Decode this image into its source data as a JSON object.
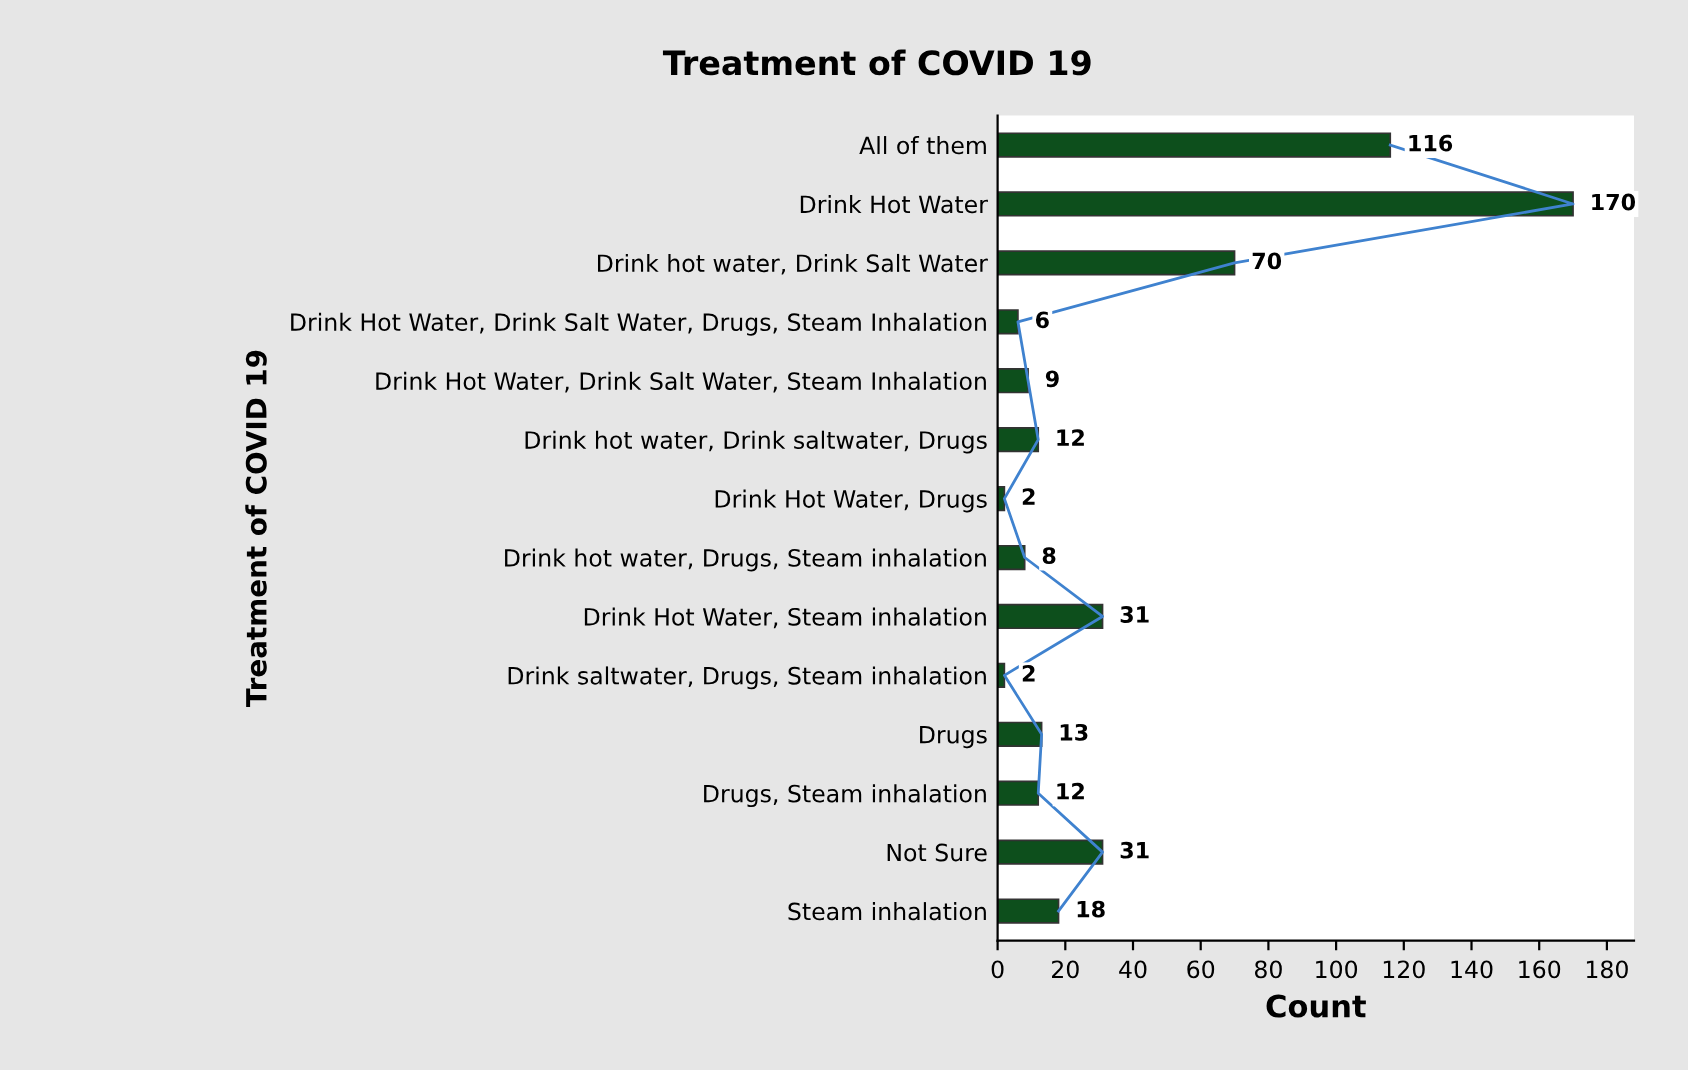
{
  "chart_data": {
    "type": "bar",
    "orientation": "horizontal",
    "title": "Treatment of COVID 19",
    "xlabel": "Count",
    "ylabel": "Treatment of COVID 19",
    "categories": [
      "All of them",
      "Drink Hot Water",
      "Drink hot water, Drink Salt Water",
      "Drink Hot Water, Drink Salt Water, Drugs, Steam Inhalation",
      "Drink Hot Water, Drink Salt Water, Steam Inhalation",
      "Drink hot water, Drink saltwater, Drugs",
      "Drink Hot Water, Drugs",
      "Drink hot water, Drugs, Steam inhalation",
      "Drink Hot Water, Steam inhalation",
      "Drink saltwater, Drugs, Steam inhalation",
      "Drugs",
      "Drugs, Steam inhalation",
      "Not Sure",
      "Steam inhalation"
    ],
    "series": [
      {
        "color": "#0d4f1c",
        "values": [
          116,
          170,
          70,
          6,
          9,
          12,
          2,
          8,
          31,
          2,
          13,
          12,
          31,
          18
        ],
        "value_labels": [
          "116",
          "170",
          "70",
          "6",
          "9",
          "12",
          "2",
          "8",
          "31",
          "2",
          "13",
          "12",
          "31",
          "18"
        ]
      },
      {
        "type": "line",
        "color": "#3f82cf",
        "values": [
          116,
          170,
          70,
          6,
          9,
          12,
          2,
          8,
          31,
          2,
          13,
          12,
          31,
          18
        ]
      }
    ],
    "xlim": [
      0,
      188
    ],
    "xticks": [
      0,
      20,
      40,
      60,
      80,
      100,
      120,
      140,
      160,
      180
    ],
    "grid": false
  }
}
